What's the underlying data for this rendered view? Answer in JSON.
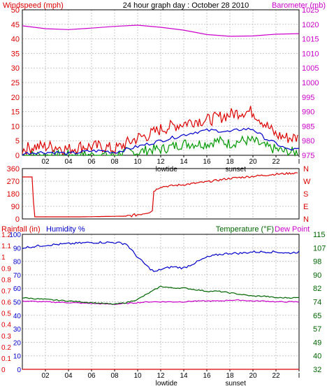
{
  "title": "24 hour graph day : October 28 2010",
  "colors": {
    "wind_gust": "#dd0000",
    "wind_avg": "#0000cc",
    "wind_min": "#009900",
    "barometer": "#cc00cc",
    "direction": "#dd0000",
    "rain": "#dd0000",
    "humidity": "#0000cc",
    "temperature": "#006600",
    "dewpoint": "#cc00cc"
  },
  "chart_data": [
    {
      "type": "line",
      "panel": "wind-barometer",
      "ylabel_left": "Windspeed (mph)",
      "ylabel_right": "Barometer (mb)",
      "ylim_left": [
        0,
        50
      ],
      "yticks_left": [
        "0",
        "5",
        "10",
        "15",
        "20",
        "25",
        "30",
        "35",
        "40",
        "45",
        "50"
      ],
      "ylim_right": [
        975,
        1025
      ],
      "yticks_right": [
        "975",
        "980",
        "985",
        "990",
        "995",
        "1000",
        "1005",
        "1010",
        "1015",
        "1020",
        "1025"
      ],
      "xlim": [
        0,
        24
      ],
      "xticks": [
        "02",
        "04",
        "06",
        "08",
        "10",
        "12",
        "14",
        "16",
        "18",
        "20",
        "22",
        "I"
      ],
      "annotations": [
        {
          "x": 12.5,
          "text": "lowtide"
        },
        {
          "x": 18.5,
          "text": "sunset"
        }
      ],
      "grid": true,
      "series": [
        {
          "role": "gust",
          "axis": "left",
          "x": [
            0,
            1,
            2,
            3,
            4,
            5,
            6,
            7,
            8,
            9,
            10,
            11,
            12,
            13,
            14,
            15,
            16,
            17,
            18,
            19,
            20,
            21,
            22,
            23,
            24
          ],
          "values": [
            2,
            3,
            3,
            3,
            2,
            3,
            3,
            3,
            2,
            4,
            6,
            7,
            9,
            10,
            11,
            12,
            12,
            13,
            14,
            15,
            15,
            11,
            7,
            6,
            6
          ]
        },
        {
          "role": "average",
          "axis": "left",
          "x": [
            0,
            1,
            2,
            3,
            4,
            5,
            6,
            7,
            8,
            9,
            10,
            11,
            12,
            13,
            14,
            15,
            16,
            17,
            18,
            19,
            20,
            21,
            22,
            23,
            24
          ],
          "values": [
            0.5,
            1,
            1,
            1,
            0.5,
            1,
            1.5,
            1.5,
            1,
            2,
            3,
            4,
            5,
            6,
            7,
            8,
            8.5,
            8.5,
            8,
            9,
            9,
            6,
            4,
            2,
            2
          ]
        },
        {
          "role": "minimum",
          "axis": "left",
          "x": [
            0,
            1,
            2,
            3,
            4,
            5,
            6,
            7,
            8,
            9,
            10,
            11,
            12,
            13,
            14,
            15,
            16,
            17,
            18,
            19,
            20,
            21,
            22,
            23,
            24
          ],
          "values": [
            0,
            0,
            0,
            0,
            0,
            0,
            0,
            0,
            0,
            1,
            1,
            2,
            2,
            3,
            4,
            4,
            4,
            5,
            4,
            5,
            5,
            3,
            2,
            1,
            1
          ]
        },
        {
          "role": "barometer",
          "axis": "right",
          "x": [
            0,
            2,
            4,
            6,
            8,
            10,
            12,
            14,
            16,
            18,
            20,
            22,
            24
          ],
          "values": [
            1019.5,
            1018.5,
            1018.2,
            1018.7,
            1019.3,
            1019.7,
            1019.0,
            1018.0,
            1016.5,
            1015.9,
            1016.0,
            1016.6,
            1016.8
          ]
        }
      ]
    },
    {
      "type": "line",
      "panel": "wind-direction",
      "ylim_left": [
        0,
        360
      ],
      "yticks_left": [
        "0",
        "90",
        "180",
        "270",
        "360"
      ],
      "yticks_right": [
        "N",
        "E",
        "S",
        "W",
        "N"
      ],
      "xlim": [
        0,
        24
      ],
      "grid": true,
      "series": [
        {
          "role": "direction",
          "x": [
            0,
            0.9,
            1,
            5,
            9,
            10,
            11,
            11.3,
            11.4,
            12,
            14,
            16,
            18,
            20,
            22,
            24
          ],
          "values": [
            300,
            300,
            15,
            15,
            20,
            30,
            50,
            60,
            200,
            230,
            245,
            265,
            290,
            305,
            320,
            330
          ]
        }
      ]
    },
    {
      "type": "line",
      "panel": "rain-humidity-temperature",
      "ylabel_left_rain": "Rainfall (in)",
      "ylabel_left_humidity": "Humidity %",
      "ylabel_right_temperature": "Temperature (°F)",
      "ylabel_right_dew": "Dew Point",
      "ylim_rain": [
        0,
        1.2
      ],
      "yticks_rain": [
        "0",
        "0.1",
        "0.2",
        "0.3",
        "0.4",
        "0.5",
        "0.6",
        "0.7",
        "0.8",
        "0.9",
        "1",
        "1.1",
        "1.2"
      ],
      "ylim_humidity": [
        0,
        100
      ],
      "yticks_humidity": [
        "0",
        "10",
        "20",
        "30",
        "40",
        "50",
        "60",
        "70",
        "80",
        "90",
        "100"
      ],
      "ylim_temperature": [
        32,
        115
      ],
      "yticks_temperature": [
        "32",
        "40",
        "49",
        "57",
        "65",
        "74",
        "82",
        "90",
        "98",
        "107",
        "115"
      ],
      "xlim": [
        0,
        24
      ],
      "xticks": [
        "02",
        "04",
        "06",
        "08",
        "10",
        "12",
        "14",
        "16",
        "18",
        "20",
        "22",
        "I"
      ],
      "annotations": [
        {
          "x": 12.5,
          "text": "lowtide"
        },
        {
          "x": 18.5,
          "text": "sunset"
        }
      ],
      "grid": true,
      "series": [
        {
          "role": "rain",
          "axis": "rain",
          "x": [
            0,
            24
          ],
          "values": [
            0,
            0
          ]
        },
        {
          "role": "humidity",
          "axis": "humidity",
          "x": [
            0,
            2,
            4,
            6,
            8,
            9,
            10,
            11,
            11.5,
            12,
            13,
            14,
            15,
            16,
            17,
            18,
            19,
            20,
            21,
            22,
            23,
            24
          ],
          "values": [
            90,
            92,
            93,
            94,
            94,
            93,
            83,
            75,
            72,
            74,
            76,
            75,
            79,
            83,
            85,
            86,
            86,
            87,
            87,
            87,
            86,
            87
          ]
        },
        {
          "role": "temperature",
          "axis": "temperature",
          "x": [
            0,
            2,
            4,
            6,
            8,
            9,
            10,
            11,
            12,
            13,
            14,
            15,
            16,
            17,
            18,
            19,
            20,
            21,
            22,
            23,
            24
          ],
          "values": [
            76,
            75,
            74,
            73,
            72,
            73,
            75,
            79,
            83,
            82,
            82,
            81,
            80,
            80,
            79,
            78,
            77,
            77,
            76,
            76,
            76
          ]
        },
        {
          "role": "dewpoint",
          "axis": "temperature",
          "x": [
            0,
            2,
            4,
            6,
            8,
            9,
            10,
            11,
            12,
            13,
            14,
            15,
            16,
            17,
            18,
            19,
            20,
            21,
            22,
            23,
            24
          ],
          "values": [
            74,
            73.5,
            73,
            72.5,
            72,
            72.5,
            73,
            73.5,
            73.5,
            73.5,
            73.5,
            74,
            74,
            74,
            74.5,
            74.5,
            74,
            74,
            73.5,
            73.5,
            73.5
          ]
        }
      ]
    }
  ]
}
